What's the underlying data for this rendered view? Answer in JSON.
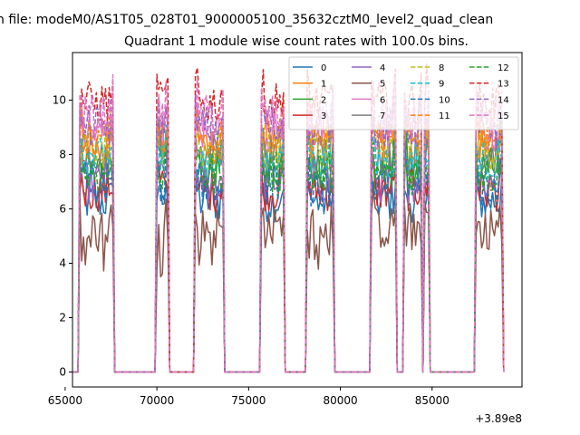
{
  "figure": {
    "suptitle": "n file: modeM0/AS1T05_028T01_9000005100_35632cztM0_level2_quad_clean",
    "title": "Quadrant 1 module wise count rates with 100.0s bins."
  },
  "chart_data": {
    "type": "line",
    "xlim": [
      65400,
      89900
    ],
    "ylim": [
      -0.55,
      11.75
    ],
    "x_offset_label": "+3.89e8",
    "x_ticks": [
      65000,
      70000,
      75000,
      80000,
      85000
    ],
    "x_tick_labels": [
      "65000",
      "70000",
      "75000",
      "80000",
      "85000"
    ],
    "y_ticks": [
      0,
      2,
      4,
      6,
      8,
      10
    ],
    "y_tick_labels": [
      "0",
      "2",
      "4",
      "6",
      "8",
      "10"
    ],
    "grid": false,
    "legend_placement": "upper-right",
    "legend_columns": 4,
    "bin_seconds": 100,
    "active_segments": [
      {
        "start": 65800,
        "end": 67600
      },
      {
        "start": 70000,
        "end": 70600
      },
      {
        "start": 72100,
        "end": 73600
      },
      {
        "start": 75700,
        "end": 76900
      },
      {
        "start": 78200,
        "end": 79600
      },
      {
        "start": 81700,
        "end": 83000
      },
      {
        "start": 83500,
        "end": 84400
      },
      {
        "start": 84600,
        "end": 84800
      },
      {
        "start": 87400,
        "end": 88800
      }
    ],
    "series": [
      {
        "name": "0",
        "color": "#1f77b4",
        "dash": "solid",
        "level": 6.3
      },
      {
        "name": "1",
        "color": "#ff7f0e",
        "dash": "solid",
        "level": 8.4
      },
      {
        "name": "2",
        "color": "#2ca02c",
        "dash": "solid",
        "level": 7.5
      },
      {
        "name": "3",
        "color": "#d62728",
        "dash": "solid",
        "level": 6.7
      },
      {
        "name": "4",
        "color": "#9467bd",
        "dash": "solid",
        "level": 7.0
      },
      {
        "name": "5",
        "color": "#8c564b",
        "dash": "solid",
        "level": 5.3
      },
      {
        "name": "6",
        "color": "#e377c2",
        "dash": "solid",
        "level": 8.8
      },
      {
        "name": "7",
        "color": "#7f7f7f",
        "dash": "solid",
        "level": 8.0
      },
      {
        "name": "8",
        "color": "#bcbd22",
        "dash": "dashed",
        "level": 8.2
      },
      {
        "name": "9",
        "color": "#17becf",
        "dash": "dashed",
        "level": 7.8
      },
      {
        "name": "10",
        "color": "#1f77b4",
        "dash": "dashed",
        "level": 6.9
      },
      {
        "name": "11",
        "color": "#ff7f0e",
        "dash": "dashed",
        "level": 8.6
      },
      {
        "name": "12",
        "color": "#2ca02c",
        "dash": "dashed",
        "level": 7.3
      },
      {
        "name": "13",
        "color": "#d62728",
        "dash": "dashed",
        "level": 9.9
      },
      {
        "name": "14",
        "color": "#9467bd",
        "dash": "dashed",
        "level": 9.0
      },
      {
        "name": "15",
        "color": "#e377c2",
        "dash": "dashed",
        "level": 9.4
      }
    ]
  }
}
